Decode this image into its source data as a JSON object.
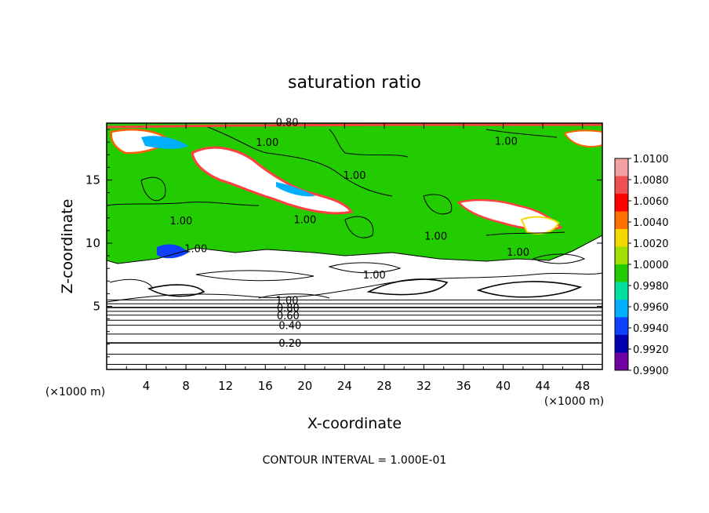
{
  "chart_data": {
    "type": "heatmap",
    "title": "saturation ratio",
    "xlabel": "X-coordinate",
    "ylabel": "Z-coordinate",
    "x_unit_left": "(×1000 m)",
    "x_unit_right": "(×1000 m)",
    "x_ticks": [
      "4",
      "8",
      "12",
      "16",
      "20",
      "24",
      "28",
      "32",
      "36",
      "40",
      "44",
      "48"
    ],
    "x_tick_values": [
      4,
      8,
      12,
      16,
      20,
      24,
      28,
      32,
      36,
      40,
      44,
      48
    ],
    "y_ticks": [
      "5",
      "10",
      "15"
    ],
    "y_tick_values": [
      5,
      10,
      15
    ],
    "xlim": [
      0,
      50
    ],
    "ylim": [
      0,
      19.5
    ],
    "footer": "CONTOUR INTERVAL = 1.000E-01",
    "colorbar": {
      "labels": [
        "1.0100",
        "1.0080",
        "1.0060",
        "1.0040",
        "1.0020",
        "1.0000",
        "0.9980",
        "0.9960",
        "0.9940",
        "0.9920",
        "0.9900"
      ],
      "values": [
        1.01,
        1.008,
        1.006,
        1.004,
        1.002,
        1.0,
        0.998,
        0.996,
        0.994,
        0.992,
        0.99
      ],
      "colors": [
        "#f4a0a0",
        "#ee5050",
        "#ff0000",
        "#ff7000",
        "#f5d800",
        "#a0e000",
        "#22cc00",
        "#00e0a0",
        "#00b0ff",
        "#1040ff",
        "#0000b0",
        "#7000a0"
      ]
    },
    "contour_labels": [
      {
        "text": "0.20",
        "x": 18.5,
        "y": 2.1
      },
      {
        "text": "0.40",
        "x": 18.5,
        "y": 3.5
      },
      {
        "text": "0.60",
        "x": 18.3,
        "y": 4.3
      },
      {
        "text": "0.80",
        "x": 18.3,
        "y": 4.9
      },
      {
        "text": "1.00",
        "x": 18.2,
        "y": 5.5
      },
      {
        "text": "0.80",
        "x": 18.2,
        "y": 19.6
      },
      {
        "text": "1.00",
        "x": 16.2,
        "y": 18.0
      },
      {
        "text": "1.00",
        "x": 25.0,
        "y": 15.4
      },
      {
        "text": "1.00",
        "x": 7.5,
        "y": 11.8
      },
      {
        "text": "1.00",
        "x": 9.0,
        "y": 9.6
      },
      {
        "text": "1.00",
        "x": 20.0,
        "y": 11.9
      },
      {
        "text": "1.00",
        "x": 33.2,
        "y": 10.6
      },
      {
        "text": "1.00",
        "x": 40.3,
        "y": 18.1
      },
      {
        "text": "1.00",
        "x": 27.0,
        "y": 7.5
      },
      {
        "text": "1.00",
        "x": 41.5,
        "y": 9.3
      }
    ]
  }
}
